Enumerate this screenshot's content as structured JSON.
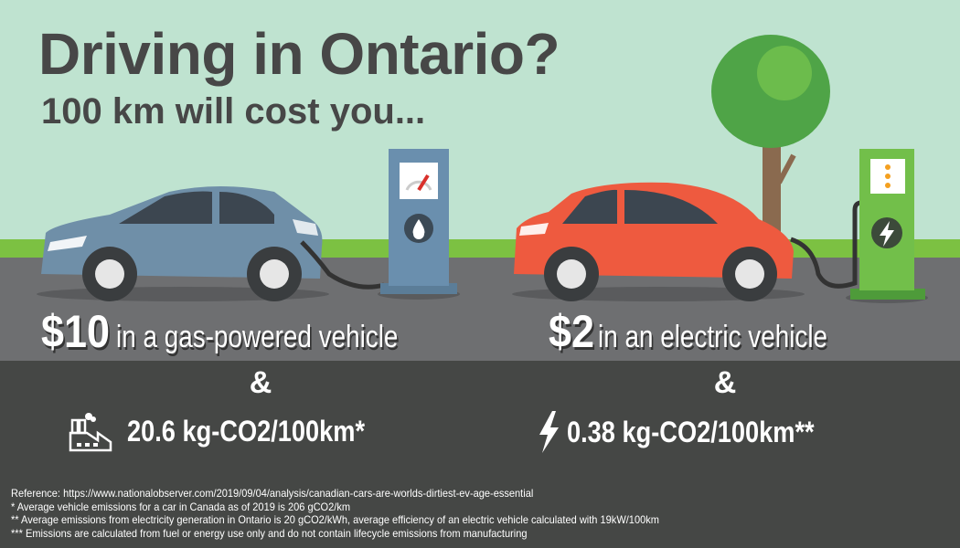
{
  "header": {
    "title": "Driving in Ontario?",
    "subtitle": "100 km will cost you..."
  },
  "gas": {
    "cost": "$10",
    "label": "in a gas-powered vehicle",
    "connector": "&",
    "emissions": "20.6 kg-CO2/100km*",
    "icon": "factory-icon",
    "car_color": "#6f8fa8",
    "pump_color": "#6a8fae"
  },
  "electric": {
    "cost": "$2",
    "label": "in an electric vehicle",
    "connector": "&",
    "emissions": "0.38 kg-CO2/100km**",
    "icon": "lightning-bolt-icon",
    "car_color": "#ee5a3f",
    "charger_color": "#72bf4a"
  },
  "footnotes": [
    "Reference: https://www.nationalobserver.com/2019/09/04/analysis/canadian-cars-are-worlds-dirtiest-ev-age-essential",
    "* Average vehicle emissions for a car in Canada as of 2019 is 206 gCO2/km",
    "** Average emissions from electricity generation in Ontario is 20 gCO2/kWh, average efficiency of an electric vehicle calculated with 19kW/100km",
    "*** Emissions are calculated from fuel or energy use only and do not contain lifecycle emissions from manufacturing"
  ],
  "colors": {
    "sky": "#bfe3d0",
    "grass": "#7cc142",
    "road": "#6e6f71",
    "footer": "#454745",
    "title_text": "#474747"
  }
}
